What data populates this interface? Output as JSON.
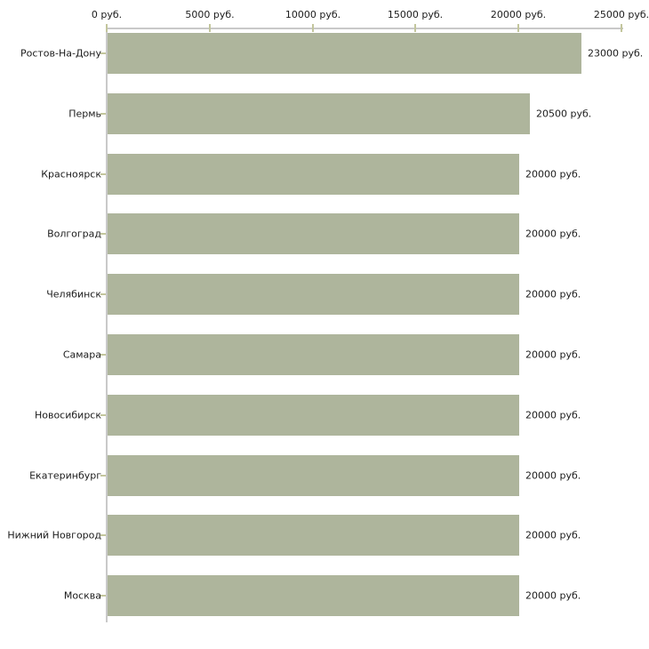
{
  "chart_data": {
    "type": "bar",
    "orientation": "horizontal",
    "title": "",
    "categories": [
      "Ростов-На-Дону",
      "Пермь",
      "Красноярск",
      "Волгоград",
      "Челябинск",
      "Самара",
      "Новосибирск",
      "Екатеринбург",
      "Нижний Новгород",
      "Москва"
    ],
    "values": [
      23000,
      20500,
      20000,
      20000,
      20000,
      20000,
      20000,
      20000,
      20000,
      20000
    ],
    "value_labels": [
      "23000 руб.",
      "20500 руб.",
      "20000 руб.",
      "20000 руб.",
      "20000 руб.",
      "20000 руб.",
      "20000 руб.",
      "20000 руб.",
      "20000 руб.",
      "20000 руб."
    ],
    "xlabel": "",
    "ylabel": "",
    "xlim": [
      0,
      25000
    ],
    "x_ticks": [
      {
        "value": 0,
        "label": "0 руб."
      },
      {
        "value": 5000,
        "label": "5000 руб."
      },
      {
        "value": 10000,
        "label": "10000 руб."
      },
      {
        "value": 15000,
        "label": "15000 руб."
      },
      {
        "value": 20000,
        "label": "20000 руб."
      },
      {
        "value": 25000,
        "label": "25000 руб."
      }
    ],
    "axis_position": "top",
    "grid": false,
    "legend": "none",
    "colors": {
      "bar": "#aeb59c",
      "axis_line": "#c9c9c9",
      "tick_mark": "#c3c69d",
      "text": "#1c1c1c",
      "background": "#ffffff"
    }
  }
}
